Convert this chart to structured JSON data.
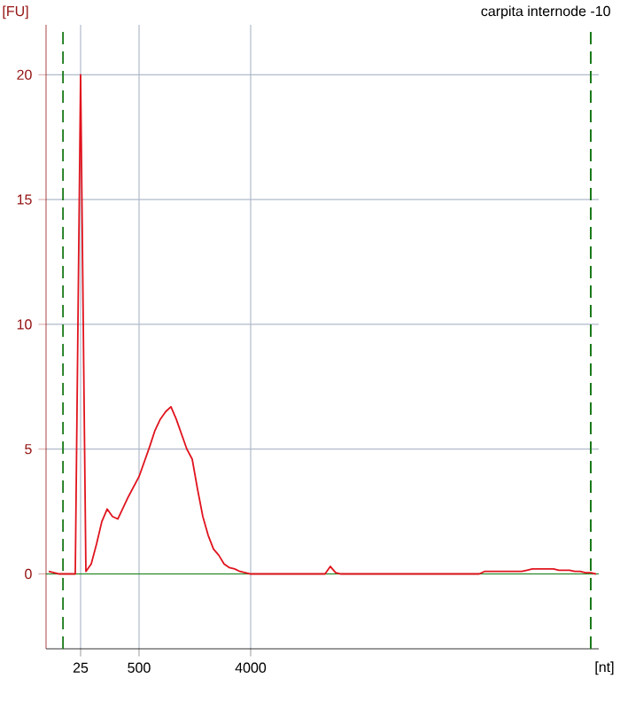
{
  "chart_data": {
    "type": "line",
    "title": "carpita internode -10",
    "xlabel": "[nt]",
    "ylabel": "[FU]",
    "categories": [
      null,
      null,
      null,
      null,
      null,
      null,
      "25",
      null,
      null,
      null,
      null,
      null,
      null,
      null,
      null,
      null,
      null,
      "500",
      null,
      null,
      null,
      null,
      null,
      null,
      null,
      null,
      null,
      null,
      null,
      null,
      null,
      null,
      null,
      null,
      null,
      null,
      null,
      null,
      "4000",
      null,
      null,
      null,
      null,
      null,
      null,
      null,
      null,
      null,
      null,
      null,
      null,
      null,
      null,
      null,
      null,
      null,
      null,
      null,
      null,
      null,
      null,
      null,
      null,
      null,
      null,
      null,
      null,
      null,
      null,
      null,
      null,
      null,
      null,
      null,
      null,
      null,
      null,
      null,
      null,
      null,
      null,
      null,
      null,
      null,
      null,
      null,
      null,
      null,
      null,
      null,
      null,
      null,
      null,
      null,
      null,
      null,
      null,
      null,
      null,
      null,
      null,
      null,
      null,
      null
    ],
    "series": [
      {
        "color": "#e0141e",
        "values": [
          0.1,
          0.05,
          0,
          0,
          0,
          0,
          20,
          0.1,
          0.4,
          1.2,
          2.1,
          2.6,
          2.3,
          2.2,
          2.65,
          3.1,
          3.5,
          3.9,
          4.5,
          5.1,
          5.75,
          6.2,
          6.5,
          6.7,
          6.2,
          5.6,
          5.0,
          4.6,
          3.4,
          2.3,
          1.55,
          1.0,
          0.75,
          0.4,
          0.25,
          0.2,
          0.1,
          0.05,
          0,
          0,
          0,
          0,
          0,
          0,
          0,
          0,
          0,
          0,
          0,
          0,
          0,
          0,
          0,
          0.3,
          0.05,
          0,
          0,
          0,
          0,
          0,
          0,
          0,
          0,
          0,
          0,
          0,
          0,
          0,
          0,
          0,
          0,
          0,
          0,
          0,
          0,
          0,
          0,
          0,
          0,
          0,
          0,
          0,
          0.1,
          0.1,
          0.1,
          0.1,
          0.1,
          0.1,
          0.1,
          0.1,
          0.15,
          0.2,
          0.2,
          0.2,
          0.2,
          0.2,
          0.15,
          0.15,
          0.15,
          0.1,
          0.1,
          0.05,
          0.05,
          0
        ]
      }
    ],
    "ylim": [
      -3,
      22
    ],
    "yticks": [
      0,
      5,
      10,
      15,
      20
    ],
    "ref_lines": [
      {
        "axis": "y",
        "value": 0,
        "color": "#2a8a2a",
        "line_style": "solid"
      }
    ],
    "grid": true,
    "marker": "none",
    "line_style": "solid"
  }
}
